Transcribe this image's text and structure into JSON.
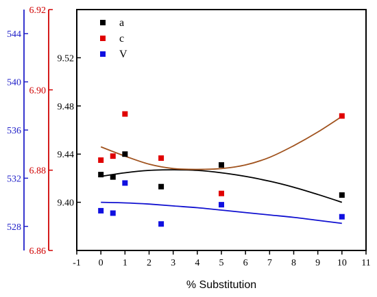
{
  "chart_data": {
    "type": "scatter",
    "xlabel": "% Substitution",
    "x_axis": {
      "range": [
        -1,
        11
      ],
      "ticks": [
        -1,
        0,
        1,
        2,
        3,
        4,
        5,
        6,
        7,
        8,
        9,
        10,
        11
      ]
    },
    "y_axes": [
      {
        "id": "a",
        "color": "#000000",
        "range": [
          9.36,
          9.56
        ],
        "ticks": [
          "9.40",
          "9.44",
          "9.48",
          "9.52"
        ]
      },
      {
        "id": "c",
        "color": "#d00000",
        "range": [
          6.86,
          6.92
        ],
        "ticks": [
          "6.86",
          "6.88",
          "6.90",
          "6.92"
        ]
      },
      {
        "id": "V",
        "color": "#2020c8",
        "range": [
          526.0,
          546.0
        ],
        "ticks": [
          "528",
          "532",
          "536",
          "540",
          "544"
        ]
      }
    ],
    "legend": {
      "placement": "top-left",
      "entries": [
        "a",
        "c",
        "V"
      ]
    },
    "series": [
      {
        "name": "a",
        "axis": "a",
        "color": "#000000",
        "fit_color": "#000000",
        "x": [
          0,
          0.5,
          1,
          2.5,
          5,
          10
        ],
        "y": [
          9.423,
          9.421,
          9.44,
          9.413,
          9.431,
          9.406
        ],
        "fit": {
          "x": [
            0,
            1,
            2,
            3,
            4,
            5,
            6,
            7,
            8,
            9,
            10
          ],
          "y": [
            9.4215,
            9.4245,
            9.4265,
            9.427,
            9.4265,
            9.4245,
            9.4215,
            9.4175,
            9.4125,
            9.4065,
            9.4
          ]
        }
      },
      {
        "name": "c",
        "axis": "c",
        "color": "#e00000",
        "fit_color": "#a0521d",
        "x": [
          0,
          0.5,
          1,
          2.5,
          5,
          10
        ],
        "y": [
          6.8825,
          6.8835,
          6.894,
          6.883,
          6.8742,
          6.8935
        ],
        "fit": {
          "x": [
            0,
            1,
            2,
            3,
            4,
            5,
            6,
            7,
            8,
            9,
            10
          ],
          "y": [
            6.8858,
            6.8835,
            6.8815,
            6.8804,
            6.8802,
            6.8804,
            6.8813,
            6.8832,
            6.8861,
            6.8895,
            6.8934
          ]
        }
      },
      {
        "name": "V",
        "axis": "V",
        "color": "#1010e0",
        "fit_color": "#1010d0",
        "x": [
          0,
          0.5,
          1,
          2.5,
          5,
          10
        ],
        "y": [
          529.3,
          529.1,
          531.6,
          528.2,
          529.8,
          528.8
        ],
        "fit": {
          "x": [
            0,
            1,
            2,
            3,
            4,
            5,
            6,
            7,
            8,
            9,
            10
          ],
          "y": [
            530.0,
            529.95,
            529.85,
            529.7,
            529.55,
            529.35,
            529.15,
            528.95,
            528.75,
            528.5,
            528.25
          ]
        }
      }
    ]
  }
}
